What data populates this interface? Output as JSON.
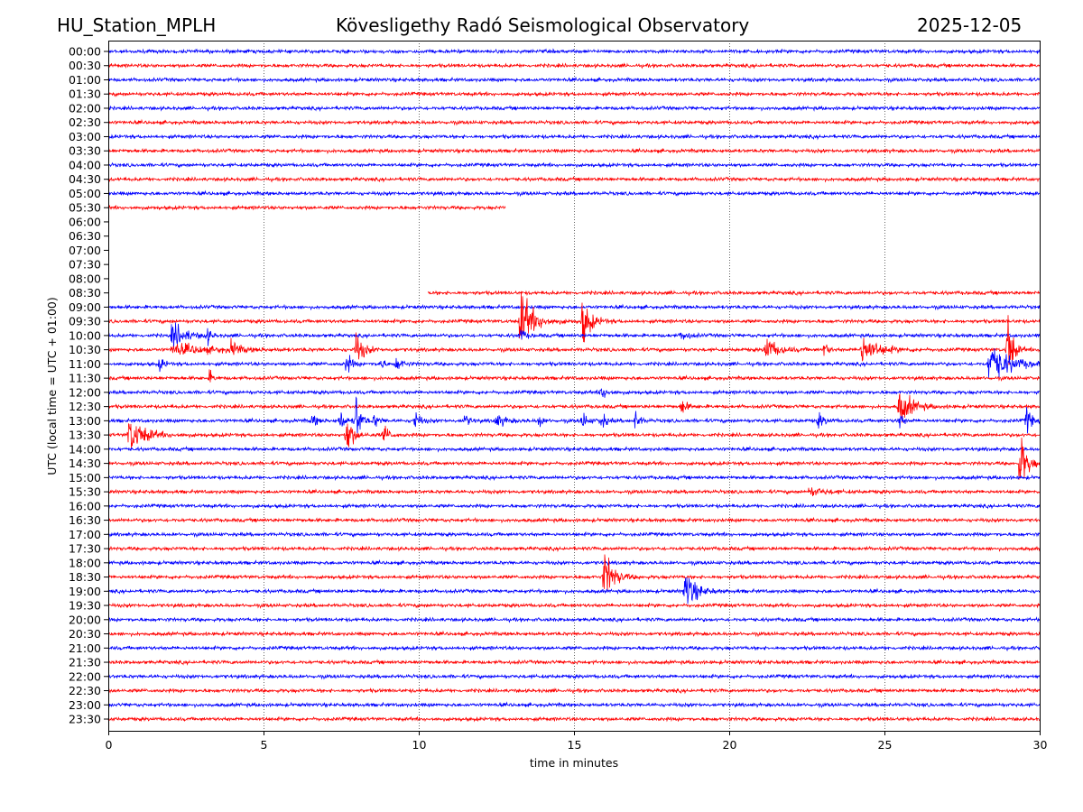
{
  "header": {
    "station": "HU_Station_MPLH",
    "title": "Kövesligethy Radó Seismological Observatory",
    "date": "2025-12-05"
  },
  "chart_data": {
    "type": "line",
    "subtype": "helicorder",
    "xlabel": "time in minutes",
    "ylabel": "UTC (local time = UTC + 01:00)",
    "xlim": [
      0,
      30
    ],
    "xticks": [
      "0",
      "5",
      "10",
      "15",
      "20",
      "25",
      "30"
    ],
    "grid": "vertical dotted at 5-minute intervals",
    "colors": {
      "even_rows": "#0000ff",
      "odd_rows": "#ff0000"
    },
    "rows": [
      "00:00",
      "00:30",
      "01:00",
      "01:30",
      "02:00",
      "02:30",
      "03:00",
      "03:30",
      "04:00",
      "04:30",
      "05:00",
      "05:30",
      "06:00",
      "06:30",
      "07:00",
      "07:30",
      "08:00",
      "08:30",
      "09:00",
      "09:30",
      "10:00",
      "10:30",
      "11:00",
      "11:30",
      "12:00",
      "12:30",
      "13:00",
      "13:30",
      "14:00",
      "14:30",
      "15:00",
      "15:30",
      "16:00",
      "16:30",
      "17:00",
      "17:30",
      "18:00",
      "18:30",
      "19:00",
      "19:30",
      "20:00",
      "20:30",
      "21:00",
      "21:30",
      "22:00",
      "22:30",
      "23:00",
      "23:30"
    ],
    "data_gaps": [
      {
        "row": "05:30",
        "from_min": 12.8,
        "to_min": 30
      },
      {
        "row": "06:00",
        "from_min": 0,
        "to_min": 30
      },
      {
        "row": "06:30",
        "from_min": 0,
        "to_min": 30
      },
      {
        "row": "07:00",
        "from_min": 0,
        "to_min": 30
      },
      {
        "row": "07:30",
        "from_min": 0,
        "to_min": 30
      },
      {
        "row": "08:00",
        "from_min": 0,
        "to_min": 30
      },
      {
        "row": "08:30",
        "from_min": 0,
        "to_min": 10.3
      }
    ],
    "events": [
      {
        "row": "09:30",
        "minute": 13.2,
        "duration": 0.8,
        "amplitude": 14
      },
      {
        "row": "09:30",
        "minute": 15.2,
        "duration": 0.5,
        "amplitude": 11
      },
      {
        "row": "10:00",
        "minute": 2.0,
        "duration": 0.8,
        "amplitude": 6
      },
      {
        "row": "10:00",
        "minute": 3.1,
        "duration": 0.2,
        "amplitude": 4
      },
      {
        "row": "10:00",
        "minute": 13.2,
        "duration": 0.3,
        "amplitude": 3
      },
      {
        "row": "10:00",
        "minute": 18.4,
        "duration": 0.4,
        "amplitude": 2.5
      },
      {
        "row": "10:30",
        "minute": 2.0,
        "duration": 2.5,
        "amplitude": 2.5
      },
      {
        "row": "10:30",
        "minute": 3.9,
        "duration": 0.4,
        "amplitude": 4
      },
      {
        "row": "10:30",
        "minute": 7.9,
        "duration": 0.5,
        "amplitude": 7
      },
      {
        "row": "10:30",
        "minute": 21.1,
        "duration": 0.7,
        "amplitude": 6
      },
      {
        "row": "10:30",
        "minute": 23.0,
        "duration": 0.2,
        "amplitude": 4
      },
      {
        "row": "10:30",
        "minute": 24.2,
        "duration": 1.0,
        "amplitude": 7
      },
      {
        "row": "10:30",
        "minute": 28.9,
        "duration": 0.3,
        "amplitude": 18
      },
      {
        "row": "11:00",
        "minute": 1.6,
        "duration": 0.2,
        "amplitude": 4
      },
      {
        "row": "11:00",
        "minute": 7.6,
        "duration": 0.3,
        "amplitude": 5
      },
      {
        "row": "11:00",
        "minute": 8.7,
        "duration": 0.2,
        "amplitude": 3
      },
      {
        "row": "11:00",
        "minute": 9.2,
        "duration": 0.4,
        "amplitude": 3
      },
      {
        "row": "11:00",
        "minute": 28.3,
        "duration": 1.2,
        "amplitude": 10
      },
      {
        "row": "11:30",
        "minute": 3.2,
        "duration": 0.2,
        "amplitude": 3
      },
      {
        "row": "12:00",
        "minute": 15.8,
        "duration": 0.4,
        "amplitude": 3
      },
      {
        "row": "12:30",
        "minute": 18.4,
        "duration": 0.3,
        "amplitude": 4
      },
      {
        "row": "12:30",
        "minute": 25.4,
        "duration": 0.8,
        "amplitude": 8
      },
      {
        "row": "13:00",
        "minute": 6.5,
        "duration": 0.3,
        "amplitude": 3
      },
      {
        "row": "13:00",
        "minute": 7.4,
        "duration": 0.3,
        "amplitude": 5
      },
      {
        "row": "13:00",
        "minute": 7.9,
        "duration": 0.3,
        "amplitude": 12
      },
      {
        "row": "13:00",
        "minute": 8.5,
        "duration": 0.3,
        "amplitude": 3
      },
      {
        "row": "13:00",
        "minute": 9.8,
        "duration": 0.3,
        "amplitude": 5
      },
      {
        "row": "13:00",
        "minute": 11.4,
        "duration": 0.3,
        "amplitude": 3
      },
      {
        "row": "13:00",
        "minute": 12.4,
        "duration": 0.6,
        "amplitude": 3
      },
      {
        "row": "13:00",
        "minute": 13.8,
        "duration": 0.2,
        "amplitude": 4
      },
      {
        "row": "13:00",
        "minute": 15.2,
        "duration": 0.3,
        "amplitude": 4
      },
      {
        "row": "13:00",
        "minute": 15.8,
        "duration": 0.3,
        "amplitude": 4
      },
      {
        "row": "13:00",
        "minute": 16.9,
        "duration": 0.3,
        "amplitude": 4
      },
      {
        "row": "13:00",
        "minute": 22.8,
        "duration": 0.4,
        "amplitude": 3
      },
      {
        "row": "13:00",
        "minute": 25.4,
        "duration": 0.2,
        "amplitude": 5
      },
      {
        "row": "13:00",
        "minute": 29.5,
        "duration": 0.3,
        "amplitude": 6
      },
      {
        "row": "13:30",
        "minute": 0.6,
        "duration": 1.0,
        "amplitude": 8
      },
      {
        "row": "13:30",
        "minute": 7.6,
        "duration": 0.4,
        "amplitude": 10
      },
      {
        "row": "13:30",
        "minute": 8.8,
        "duration": 0.3,
        "amplitude": 5
      },
      {
        "row": "14:30",
        "minute": 29.3,
        "duration": 0.4,
        "amplitude": 15
      },
      {
        "row": "15:30",
        "minute": 22.5,
        "duration": 1.0,
        "amplitude": 2
      },
      {
        "row": "18:30",
        "minute": 15.9,
        "duration": 0.6,
        "amplitude": 12
      },
      {
        "row": "19:00",
        "minute": 18.5,
        "duration": 0.7,
        "amplitude": 9
      }
    ]
  }
}
